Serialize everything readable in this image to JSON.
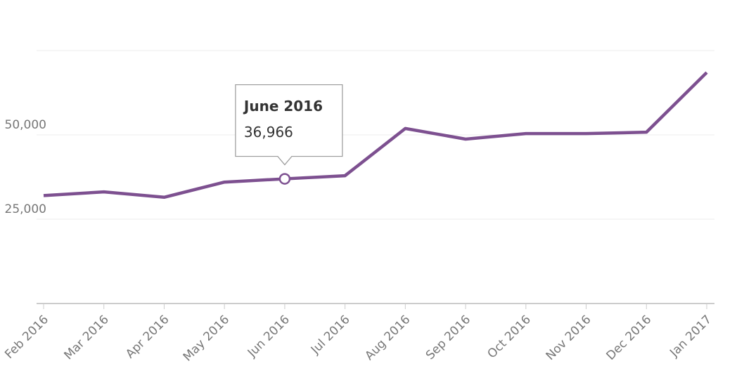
{
  "chart_data": {
    "type": "line",
    "x": [
      "Feb 2016",
      "Mar 2016",
      "Apr 2016",
      "May 2016",
      "Jun 2016",
      "Jul 2016",
      "Aug 2016",
      "Sep 2016",
      "Oct 2016",
      "Nov 2016",
      "Dec 2016",
      "Jan 2017"
    ],
    "series": [
      {
        "color": "#7d5090",
        "values": [
          32000,
          33100,
          31500,
          36000,
          36966,
          37900,
          51900,
          48750,
          50400,
          50400,
          50800,
          68500
        ]
      }
    ],
    "ylim": [
      0,
      75000
    ],
    "yticks": [
      {
        "value": 25000,
        "label": "25,000"
      },
      {
        "value": 50000,
        "label": "50,000"
      }
    ],
    "grid": true,
    "tooltip": {
      "title": "June 2016",
      "label": "36,966"
    }
  }
}
